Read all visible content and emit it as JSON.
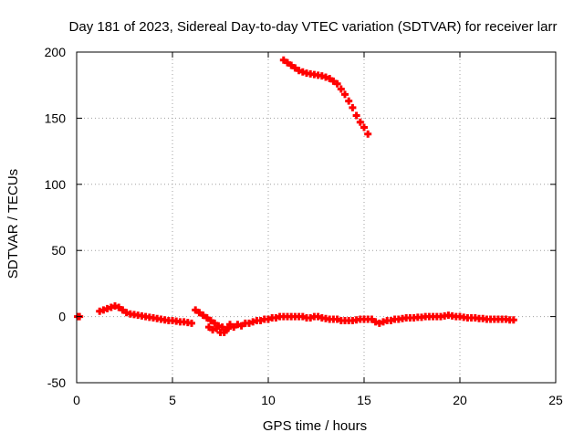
{
  "chart_data": {
    "type": "scatter",
    "title": "Day 181 of 2023, Sidereal Day-to-day VTEC variation (SDTVAR) for receiver larr",
    "xlabel": "GPS time / hours",
    "ylabel": "SDTVAR / TECUs",
    "xlim": [
      0,
      25
    ],
    "ylim": [
      -50,
      200
    ],
    "xticks": [
      0,
      5,
      10,
      15,
      20,
      25
    ],
    "yticks": [
      -50,
      0,
      50,
      100,
      150,
      200
    ],
    "grid": true,
    "series": [
      {
        "name": "SDTVAR",
        "color": "#ff0000",
        "marker": "plus",
        "points": [
          [
            0.05,
            0
          ],
          [
            0.15,
            0
          ],
          [
            1.2,
            4
          ],
          [
            1.4,
            5
          ],
          [
            1.6,
            6
          ],
          [
            1.8,
            7
          ],
          [
            2.0,
            8
          ],
          [
            2.2,
            7
          ],
          [
            2.4,
            5
          ],
          [
            2.6,
            3
          ],
          [
            2.8,
            2
          ],
          [
            3.0,
            1.5
          ],
          [
            3.2,
            1
          ],
          [
            3.4,
            0.5
          ],
          [
            3.6,
            0
          ],
          [
            3.8,
            -0.5
          ],
          [
            4.0,
            -1
          ],
          [
            4.2,
            -1.5
          ],
          [
            4.4,
            -2
          ],
          [
            4.6,
            -2.5
          ],
          [
            4.8,
            -3
          ],
          [
            5.0,
            -3
          ],
          [
            5.2,
            -3.5
          ],
          [
            5.4,
            -4
          ],
          [
            5.6,
            -4
          ],
          [
            5.8,
            -4.5
          ],
          [
            6.0,
            -5
          ],
          [
            6.2,
            5
          ],
          [
            6.4,
            3
          ],
          [
            6.6,
            1
          ],
          [
            6.8,
            -1
          ],
          [
            6.9,
            -8
          ],
          [
            7.0,
            -3
          ],
          [
            7.1,
            -10
          ],
          [
            7.2,
            -5
          ],
          [
            7.3,
            -9
          ],
          [
            7.4,
            -7
          ],
          [
            7.5,
            -12
          ],
          [
            7.6,
            -8
          ],
          [
            7.7,
            -12
          ],
          [
            7.8,
            -10
          ],
          [
            7.9,
            -9
          ],
          [
            8.0,
            -6
          ],
          [
            8.2,
            -8
          ],
          [
            8.4,
            -6
          ],
          [
            8.6,
            -7
          ],
          [
            8.8,
            -5
          ],
          [
            9.0,
            -5
          ],
          [
            9.2,
            -4
          ],
          [
            9.4,
            -3
          ],
          [
            9.6,
            -3
          ],
          [
            9.8,
            -2
          ],
          [
            10.0,
            -2
          ],
          [
            10.2,
            -1
          ],
          [
            10.4,
            -1
          ],
          [
            10.6,
            0
          ],
          [
            10.8,
            0
          ],
          [
            11.0,
            0
          ],
          [
            11.2,
            0
          ],
          [
            11.4,
            0
          ],
          [
            11.6,
            0
          ],
          [
            11.8,
            0
          ],
          [
            12.0,
            -1
          ],
          [
            12.2,
            -1
          ],
          [
            12.4,
            0
          ],
          [
            12.6,
            0
          ],
          [
            12.8,
            -1
          ],
          [
            13.0,
            -1.5
          ],
          [
            13.2,
            -2
          ],
          [
            13.4,
            -2
          ],
          [
            13.6,
            -2
          ],
          [
            13.8,
            -3
          ],
          [
            14.0,
            -3
          ],
          [
            14.2,
            -3
          ],
          [
            14.4,
            -3
          ],
          [
            14.6,
            -2.5
          ],
          [
            14.8,
            -2
          ],
          [
            15.0,
            -2
          ],
          [
            15.2,
            -2
          ],
          [
            15.4,
            -2
          ],
          [
            15.6,
            -4
          ],
          [
            15.8,
            -5
          ],
          [
            16.0,
            -4
          ],
          [
            16.2,
            -3
          ],
          [
            16.4,
            -3
          ],
          [
            16.6,
            -2
          ],
          [
            16.8,
            -2
          ],
          [
            17.0,
            -1.5
          ],
          [
            17.2,
            -1
          ],
          [
            17.4,
            -1
          ],
          [
            17.6,
            -1
          ],
          [
            17.8,
            -0.5
          ],
          [
            18.0,
            -0.5
          ],
          [
            18.2,
            0
          ],
          [
            18.4,
            0
          ],
          [
            18.6,
            0
          ],
          [
            18.8,
            0
          ],
          [
            19.0,
            0
          ],
          [
            19.2,
            0.5
          ],
          [
            19.4,
            1
          ],
          [
            19.6,
            0.5
          ],
          [
            19.8,
            0
          ],
          [
            20.0,
            0
          ],
          [
            20.2,
            -0.5
          ],
          [
            20.4,
            -1
          ],
          [
            20.6,
            -1
          ],
          [
            20.8,
            -1
          ],
          [
            21.0,
            -1.5
          ],
          [
            21.2,
            -1.5
          ],
          [
            21.4,
            -2
          ],
          [
            21.6,
            -2
          ],
          [
            21.8,
            -2
          ],
          [
            22.0,
            -2
          ],
          [
            22.2,
            -2
          ],
          [
            22.4,
            -2
          ],
          [
            22.6,
            -2.5
          ],
          [
            22.8,
            -2.5
          ],
          [
            10.8,
            194
          ],
          [
            11.0,
            192
          ],
          [
            11.2,
            190
          ],
          [
            11.4,
            188
          ],
          [
            11.6,
            186
          ],
          [
            11.8,
            185
          ],
          [
            12.0,
            184
          ],
          [
            12.2,
            183.5
          ],
          [
            12.4,
            183
          ],
          [
            12.6,
            182.5
          ],
          [
            12.8,
            182
          ],
          [
            13.0,
            181
          ],
          [
            13.2,
            180
          ],
          [
            13.4,
            178
          ],
          [
            13.6,
            176
          ],
          [
            13.8,
            172
          ],
          [
            14.0,
            168
          ],
          [
            14.2,
            163
          ],
          [
            14.4,
            158
          ],
          [
            14.6,
            152
          ],
          [
            14.8,
            147
          ],
          [
            15.0,
            143
          ],
          [
            15.2,
            138
          ]
        ]
      }
    ]
  }
}
